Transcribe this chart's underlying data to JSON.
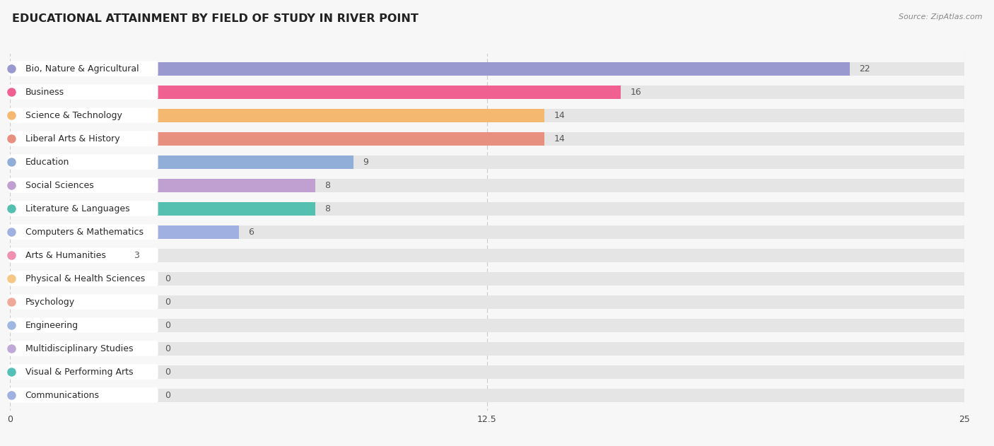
{
  "title": "EDUCATIONAL ATTAINMENT BY FIELD OF STUDY IN RIVER POINT",
  "source": "Source: ZipAtlas.com",
  "categories": [
    "Bio, Nature & Agricultural",
    "Business",
    "Science & Technology",
    "Liberal Arts & History",
    "Education",
    "Social Sciences",
    "Literature & Languages",
    "Computers & Mathematics",
    "Arts & Humanities",
    "Physical & Health Sciences",
    "Psychology",
    "Engineering",
    "Multidisciplinary Studies",
    "Visual & Performing Arts",
    "Communications"
  ],
  "values": [
    22,
    16,
    14,
    14,
    9,
    8,
    8,
    6,
    3,
    0,
    0,
    0,
    0,
    0,
    0
  ],
  "bar_colors": [
    "#9999d0",
    "#f06090",
    "#f5b870",
    "#e89080",
    "#90aed8",
    "#c0a0d0",
    "#55c0b0",
    "#a0b0e0",
    "#f090b0",
    "#f5c888",
    "#f0a898",
    "#a0b8e0",
    "#c0a8d8",
    "#55c0b8",
    "#a0b0e0"
  ],
  "xlim": [
    0,
    25
  ],
  "xticks": [
    0,
    12.5,
    25
  ],
  "background_color": "#f7f7f7",
  "bar_bg_color": "#e5e5e5",
  "title_fontsize": 11.5,
  "label_fontsize": 9,
  "value_fontsize": 9,
  "source_fontsize": 8
}
